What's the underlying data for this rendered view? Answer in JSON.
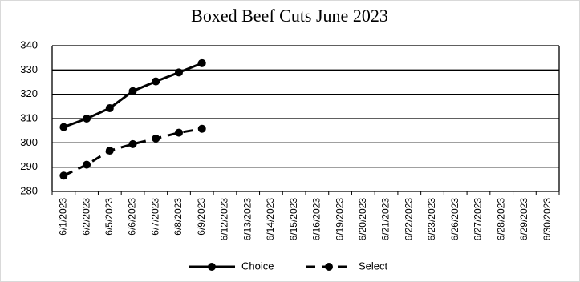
{
  "chart_data": {
    "type": "line",
    "title": "Boxed Beef Cuts June 2023",
    "categories": [
      "6/1/2023",
      "6/2/2023",
      "6/5/2023",
      "6/6/2023",
      "6/7/2023",
      "6/8/2023",
      "6/9/2023",
      "6/12/2023",
      "6/13/2023",
      "6/14/2023",
      "6/15/2023",
      "6/16/2023",
      "6/19/2023",
      "6/20/2023",
      "6/21/2023",
      "6/22/2023",
      "6/23/2023",
      "6/26/2023",
      "6/27/2023",
      "6/28/2023",
      "6/29/2023",
      "6/30/2023"
    ],
    "series": [
      {
        "name": "Choice",
        "color": "#000000",
        "dashed": false,
        "values": [
          306.5,
          310,
          314.3,
          321.3,
          325.3,
          329,
          332.8,
          null,
          null,
          null,
          null,
          null,
          null,
          null,
          null,
          null,
          null,
          null,
          null,
          null,
          null,
          null
        ]
      },
      {
        "name": "Select",
        "color": "#000000",
        "dashed": true,
        "values": [
          286.5,
          291,
          296.8,
          299.5,
          301.8,
          304.2,
          305.8,
          null,
          null,
          null,
          null,
          null,
          null,
          null,
          null,
          null,
          null,
          null,
          null,
          null,
          null,
          null
        ]
      }
    ],
    "ylim": [
      280,
      340
    ],
    "yticks": [
      280,
      290,
      300,
      310,
      320,
      330,
      340
    ],
    "grid": true,
    "legend": "bottom"
  }
}
